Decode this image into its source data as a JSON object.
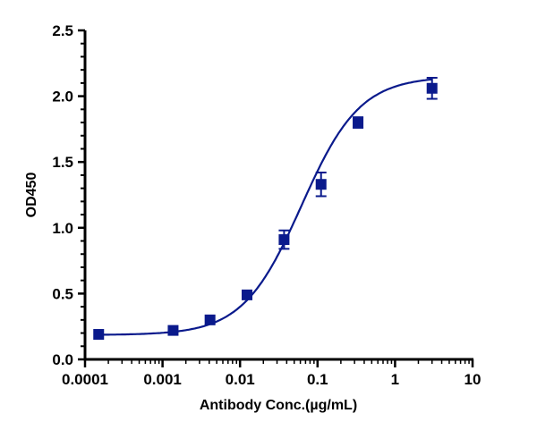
{
  "chart_data": {
    "type": "scatter",
    "title": "",
    "xlabel": "Antibody Conc.(µg/mL)",
    "ylabel": "OD450",
    "x_scale": "log",
    "xlim": [
      0.0001,
      10
    ],
    "ylim": [
      0,
      2.5
    ],
    "x_ticks": [
      "0.0001",
      "0.001",
      "0.01",
      "0.1",
      "1",
      "10"
    ],
    "y_ticks": [
      "0.0",
      "0.5",
      "1.0",
      "1.5",
      "2.0",
      "2.5"
    ],
    "grid": false,
    "legend": "none",
    "fit_curve": "sigmoidal (4PL)",
    "series_color": "#0a1a8c",
    "series": [
      {
        "x": [
          0.00015,
          0.00137,
          0.0041,
          0.0123,
          0.037,
          0.111,
          0.333,
          3.0
        ],
        "y": [
          0.19,
          0.22,
          0.3,
          0.49,
          0.91,
          1.33,
          1.8,
          2.06
        ],
        "error": [
          0.01,
          0.01,
          0.01,
          0.01,
          0.07,
          0.09,
          0.04,
          0.08
        ]
      }
    ]
  }
}
